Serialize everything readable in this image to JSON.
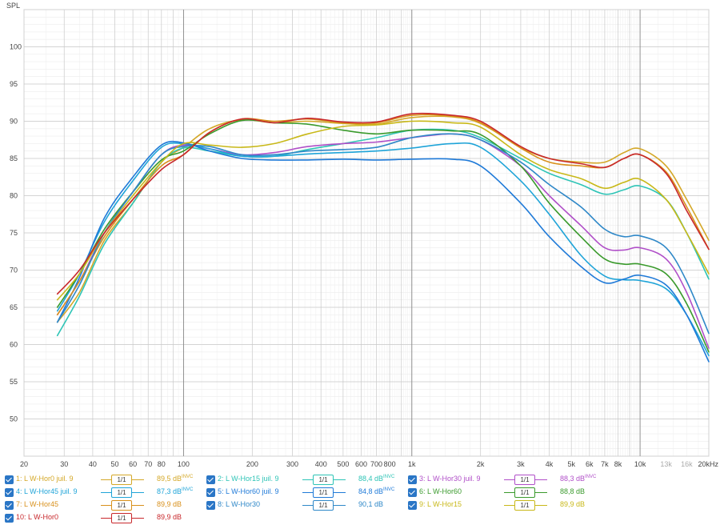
{
  "chart_data": {
    "type": "line",
    "ylabel": "SPL",
    "x_scale": "log",
    "xlim": [
      20,
      20000
    ],
    "ylim": [
      45,
      105
    ],
    "grid": true,
    "y_ticks": [
      50,
      55,
      60,
      65,
      70,
      75,
      80,
      85,
      90,
      95,
      100
    ],
    "x_tick_labels": [
      {
        "f": 20,
        "label": "20"
      },
      {
        "f": 30,
        "label": "30"
      },
      {
        "f": 40,
        "label": "40"
      },
      {
        "f": 50,
        "label": "50"
      },
      {
        "f": 60,
        "label": "60"
      },
      {
        "f": 70,
        "label": "70"
      },
      {
        "f": 80,
        "label": "80"
      },
      {
        "f": 100,
        "label": "100"
      },
      {
        "f": 200,
        "label": "200"
      },
      {
        "f": 300,
        "label": "300"
      },
      {
        "f": 400,
        "label": "400"
      },
      {
        "f": 500,
        "label": "500"
      },
      {
        "f": 600,
        "label": "600"
      },
      {
        "f": 700,
        "label": "700"
      },
      {
        "f": 800,
        "label": "800"
      },
      {
        "f": 1000,
        "label": "1k"
      },
      {
        "f": 2000,
        "label": "2k"
      },
      {
        "f": 3000,
        "label": "3k"
      },
      {
        "f": 4000,
        "label": "4k"
      },
      {
        "f": 5000,
        "label": "5k"
      },
      {
        "f": 6000,
        "label": "6k"
      },
      {
        "f": 7000,
        "label": "7k"
      },
      {
        "f": 8000,
        "label": "8k"
      },
      {
        "f": 10000,
        "label": "10k"
      },
      {
        "f": 13000,
        "label": "13k"
      },
      {
        "f": 16000,
        "label": "16k"
      },
      {
        "f": 20000,
        "label": "20kHz"
      }
    ],
    "x": [
      28,
      35,
      45,
      60,
      80,
      100,
      130,
      180,
      250,
      350,
      500,
      700,
      1000,
      1500,
      2000,
      3000,
      4000,
      5500,
      7000,
      8500,
      10000,
      13000,
      16000,
      20000
    ],
    "series": [
      {
        "name": "1: L W-Hor0 juil. 9",
        "color": "#d4a828",
        "values": [
          63,
          67,
          74,
          79,
          84.5,
          86.5,
          89,
          90.2,
          89.8,
          90,
          89.7,
          89.6,
          90.5,
          90.6,
          89.7,
          86.5,
          85,
          84.5,
          84.5,
          85.8,
          86.3,
          84,
          79.5,
          74
        ]
      },
      {
        "name": "2: L W-Hor15 juil. 9",
        "color": "#2ec4b6",
        "values": [
          61.2,
          66.5,
          73.5,
          79,
          84.5,
          86.4,
          86,
          85.3,
          85.3,
          86.2,
          87,
          87.8,
          88.8,
          88.8,
          87.8,
          85,
          83,
          81.5,
          80.2,
          80.8,
          81.3,
          79.5,
          75,
          68.8
        ]
      },
      {
        "name": "3: L W-Hor30 juil. 9",
        "color": "#b04fc8",
        "values": [
          64,
          68.5,
          75,
          80.5,
          85.5,
          86.8,
          86.3,
          85.5,
          85.8,
          86.6,
          87,
          87.2,
          87.8,
          88.3,
          87.5,
          84,
          80,
          76,
          73,
          72.7,
          73,
          71.5,
          67,
          59.5
        ]
      },
      {
        "name": "4: L W-Hor45 juil. 9",
        "color": "#1fa4d8",
        "values": [
          64.5,
          69.5,
          76.5,
          82,
          86.5,
          87,
          86.3,
          85.3,
          85.3,
          85.6,
          85.8,
          86,
          86.4,
          87,
          86.5,
          82,
          77.5,
          72,
          69.2,
          68.7,
          68.6,
          67.5,
          64,
          58.5
        ]
      },
      {
        "name": "5: L W-Hor60 juil. 9",
        "color": "#1f7ad8",
        "values": [
          63,
          69,
          77,
          82.5,
          86.8,
          87.1,
          86,
          85,
          84.8,
          84.8,
          84.9,
          84.8,
          84.9,
          84.9,
          84,
          79,
          74.5,
          70.5,
          68.3,
          68.8,
          69.3,
          68,
          64,
          57.7
        ]
      },
      {
        "name": "6: L W-Hor60",
        "color": "#3a9a2c",
        "values": [
          65,
          69.5,
          75.5,
          80.5,
          84.8,
          86,
          88.3,
          90.1,
          89.8,
          89.6,
          88.8,
          88.3,
          88.8,
          88.7,
          88.2,
          84,
          79,
          74.5,
          71.5,
          70.8,
          70.8,
          69.5,
          65.5,
          59
        ]
      },
      {
        "name": "7: L W-Hor45",
        "color": "#d8901c",
        "values": [
          64,
          68.5,
          74.5,
          79.5,
          84,
          85.5,
          88.5,
          90.3,
          90,
          90.3,
          89.8,
          89.8,
          90.8,
          90.7,
          89.8,
          86.4,
          84.5,
          84,
          83.8,
          85,
          85.5,
          83.2,
          78.5,
          72.8
        ]
      },
      {
        "name": "8: L W-Hor30",
        "color": "#2f88c8",
        "values": [
          63,
          68,
          75,
          80.5,
          85.5,
          86.6,
          86.6,
          85.5,
          85.5,
          86,
          86.2,
          86.5,
          87.8,
          88.3,
          87.5,
          84.5,
          81.5,
          78.5,
          75.5,
          74.5,
          74.6,
          73,
          68.5,
          61.5
        ]
      },
      {
        "name": "9: L W-Hor15",
        "color": "#c8b818",
        "values": [
          66,
          69.5,
          75,
          80,
          84.5,
          87,
          86.8,
          86.5,
          87,
          88.3,
          89.3,
          89.5,
          90,
          89.8,
          89.2,
          85.5,
          83.5,
          82.3,
          81,
          81.8,
          82.2,
          79.5,
          75,
          69.5
        ]
      },
      {
        "name": "10: L W-Hor0",
        "color": "#c8282c",
        "values": [
          66.8,
          70,
          75,
          79.5,
          83.5,
          85.5,
          88.5,
          90.3,
          89.8,
          90.4,
          89.9,
          89.9,
          91,
          90.8,
          90,
          86.6,
          85,
          84.3,
          83.8,
          85,
          85.5,
          83,
          78,
          72.8
        ]
      }
    ]
  },
  "legend": {
    "smoothing_label": "1/1",
    "entries": [
      {
        "name": "1: L W-Hor0 juil. 9",
        "color": "#d4a828",
        "level": "89,5 dB",
        "flag": "INVC"
      },
      {
        "name": "2: L W-Hor15 juil. 9",
        "color": "#2ec4b6",
        "level": "88,4 dB",
        "flag": "INVC"
      },
      {
        "name": "3: L W-Hor30 juil. 9",
        "color": "#b04fc8",
        "level": "88,3 dB",
        "flag": "INVC"
      },
      {
        "name": "4: L W-Hor45 juil. 9",
        "color": "#1fa4d8",
        "level": "87,3 dB",
        "flag": "INVC"
      },
      {
        "name": "5: L W-Hor60 juil. 9",
        "color": "#1f7ad8",
        "level": "84,8 dB",
        "flag": "INVC"
      },
      {
        "name": "6: L W-Hor60",
        "color": "#3a9a2c",
        "level": "88,8 dB",
        "flag": ""
      },
      {
        "name": "7: L W-Hor45",
        "color": "#d8901c",
        "level": "89,9 dB",
        "flag": ""
      },
      {
        "name": "8: L W-Hor30",
        "color": "#2f88c8",
        "level": "90,1 dB",
        "flag": ""
      },
      {
        "name": "9: L W-Hor15",
        "color": "#c8b818",
        "level": "89,9 dB",
        "flag": ""
      },
      {
        "name": "10: L W-Hor0",
        "color": "#c8282c",
        "level": "89,9 dB",
        "flag": ""
      }
    ]
  }
}
